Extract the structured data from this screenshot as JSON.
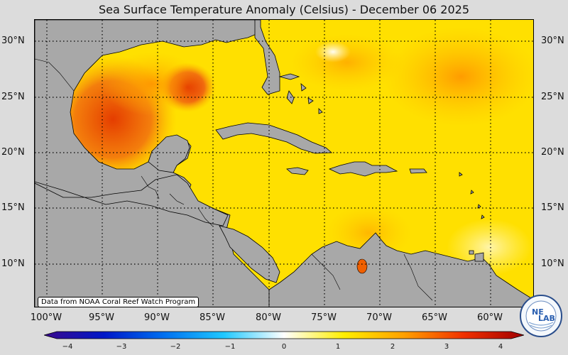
{
  "title": "Sea Surface Temperature Anomaly (Celsius) - December 06 2025",
  "map": {
    "lat_labels": [
      "30°N",
      "25°N",
      "20°N",
      "15°N",
      "10°N"
    ],
    "lon_labels": [
      "100°W",
      "95°W",
      "90°W",
      "85°W",
      "80°W",
      "75°W",
      "70°W",
      "65°W",
      "60°W"
    ],
    "land_color": "#a8a8a8",
    "ocean_base_color": "#ffe000",
    "grid": "dotted"
  },
  "attribution": "Data from NOAA Coral Reef Watch Program",
  "colorbar": {
    "ticks": [
      "−4",
      "−3",
      "−2",
      "−1",
      "0",
      "1",
      "2",
      "3",
      "4"
    ],
    "range": [
      -4,
      4
    ],
    "colors": [
      "#3a0a8c",
      "#0018c8",
      "#0070f0",
      "#20c8ff",
      "#ffffff",
      "#ffee00",
      "#ffa000",
      "#f03000",
      "#a00000"
    ]
  },
  "logo": {
    "text_line1": "NE",
    "text_line2": "LAB"
  }
}
